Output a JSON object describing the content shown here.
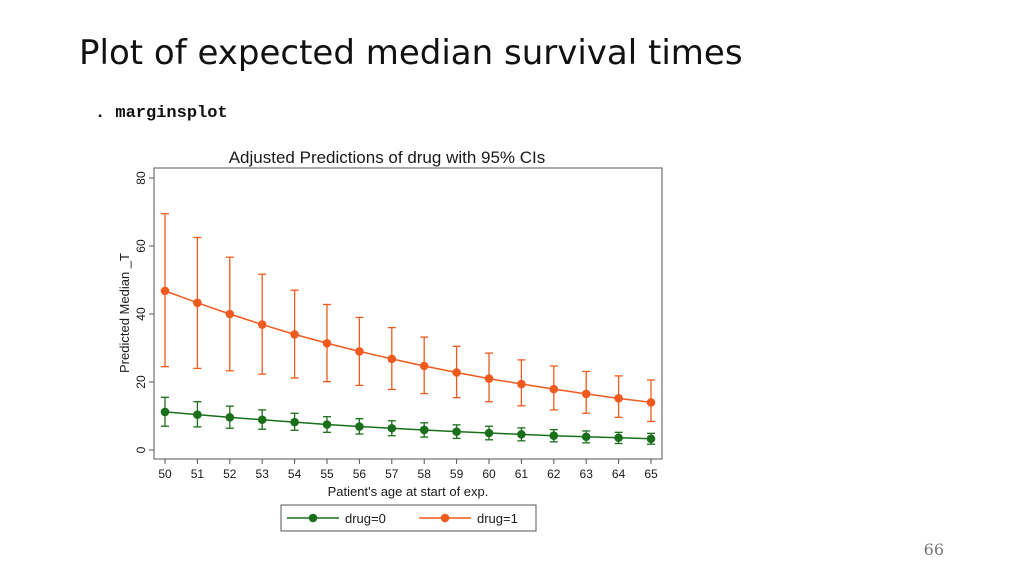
{
  "slide": {
    "title": "Plot of expected median survival times",
    "command": ". marginsplot",
    "page_number": "66"
  },
  "chart_data": {
    "type": "line",
    "title": "Adjusted Predictions of drug with 95% CIs",
    "xlabel": "Patient's age at start of exp.",
    "ylabel": "Predicted Median _T",
    "x": [
      50,
      51,
      52,
      53,
      54,
      55,
      56,
      57,
      58,
      59,
      60,
      61,
      62,
      63,
      64,
      65
    ],
    "xlim": [
      50,
      65
    ],
    "ylim": [
      0,
      80
    ],
    "yticks": [
      0,
      20,
      40,
      60,
      80
    ],
    "grid": false,
    "legend_position": "bottom",
    "series": [
      {
        "name": "drug=0",
        "color": "#1a6f1a",
        "values": [
          11.2,
          10.4,
          9.6,
          8.9,
          8.2,
          7.5,
          6.9,
          6.4,
          5.9,
          5.4,
          5.0,
          4.6,
          4.2,
          3.9,
          3.6,
          3.3
        ],
        "ci_low": [
          7.0,
          6.8,
          6.4,
          6.1,
          5.8,
          5.2,
          4.7,
          4.2,
          3.8,
          3.4,
          3.0,
          2.7,
          2.4,
          2.1,
          1.9,
          1.7
        ],
        "ci_high": [
          15.5,
          14.2,
          12.9,
          11.8,
          10.8,
          9.8,
          9.2,
          8.6,
          8.0,
          7.4,
          7.0,
          6.5,
          6.0,
          5.6,
          5.2,
          4.9
        ]
      },
      {
        "name": "drug=1",
        "color": "#f05a1e",
        "values": [
          46.8,
          43.3,
          40.0,
          36.9,
          34.0,
          31.4,
          29.0,
          26.8,
          24.7,
          22.8,
          21.0,
          19.4,
          17.9,
          16.5,
          15.2,
          14.0
        ],
        "ci_low": [
          24.5,
          24.0,
          23.3,
          22.3,
          21.2,
          20.1,
          19.0,
          17.8,
          16.6,
          15.4,
          14.2,
          13.0,
          11.8,
          10.8,
          9.6,
          8.4
        ],
        "ci_high": [
          69.5,
          62.5,
          56.7,
          51.7,
          47.0,
          42.8,
          39.0,
          36.0,
          33.2,
          30.5,
          28.5,
          26.5,
          24.7,
          23.1,
          21.8,
          20.6
        ]
      }
    ]
  }
}
